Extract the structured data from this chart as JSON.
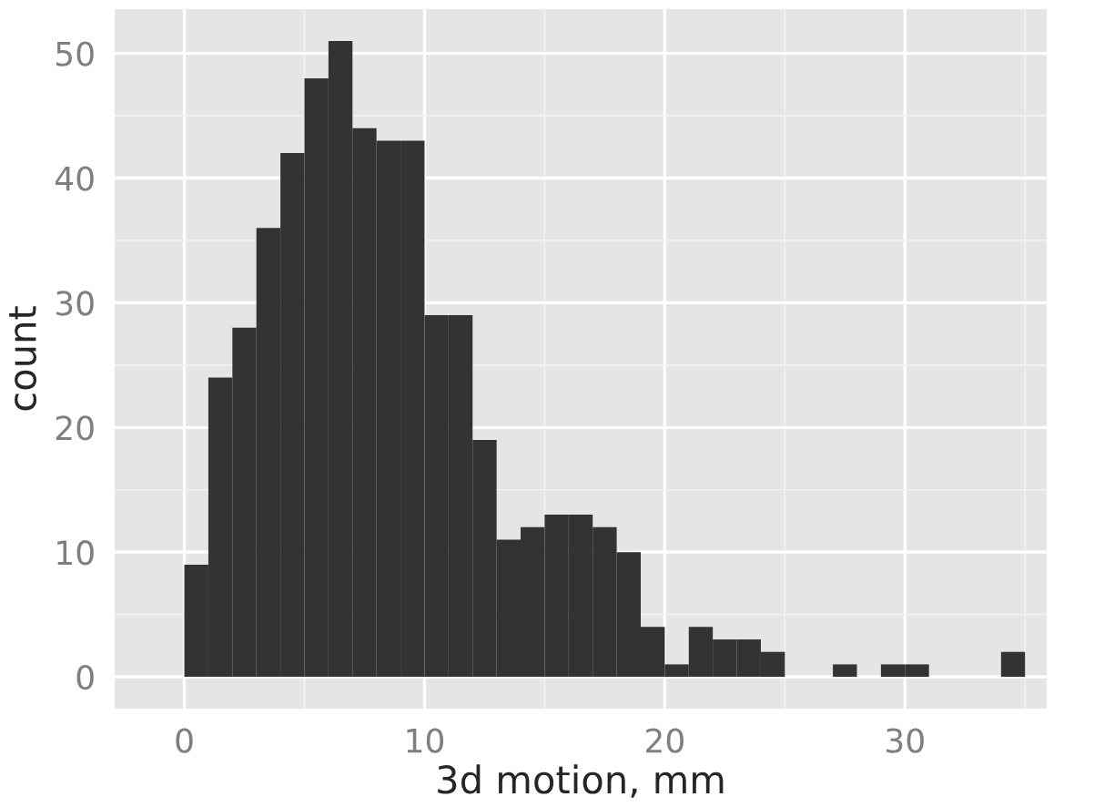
{
  "chart_data": {
    "type": "histogram",
    "xlabel": "3d motion, mm",
    "ylabel": "count",
    "color": "#333333",
    "bins": [
      0,
      1,
      2,
      3,
      4,
      5,
      6,
      7,
      8,
      9,
      10,
      11,
      12,
      13,
      14,
      15,
      16,
      17,
      18,
      19,
      20,
      21,
      22,
      23,
      24,
      25,
      26,
      27,
      28,
      29,
      30,
      31,
      32,
      33,
      34,
      35
    ],
    "values": [
      9,
      24,
      28,
      36,
      42,
      48,
      51,
      44,
      43,
      43,
      29,
      29,
      19,
      11,
      12,
      13,
      13,
      12,
      10,
      4,
      1,
      4,
      3,
      3,
      2,
      0,
      0,
      1,
      0,
      1,
      1,
      0,
      0,
      0,
      2
    ],
    "xlim": [
      -2.9,
      35.9
    ],
    "xticks": [
      0,
      10,
      20,
      30
    ],
    "ylim": [
      -2.55,
      53.55
    ],
    "yticks": [
      0,
      10,
      20,
      30,
      40,
      50
    ],
    "grid": true
  }
}
